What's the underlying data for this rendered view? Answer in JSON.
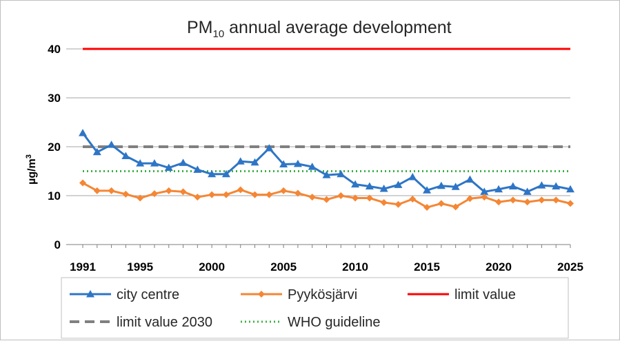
{
  "chart_data": {
    "type": "line",
    "title_main": "PM",
    "title_sub": "10",
    "title_rest": " annual average development",
    "ylabel_main": "µg/m",
    "ylabel_sup": "3",
    "xlabel": "",
    "ylim": [
      0,
      40
    ],
    "y_ticks": [
      0,
      10,
      20,
      30,
      40
    ],
    "xlim": [
      1991,
      2025
    ],
    "x_ticks": [
      1991,
      1995,
      2000,
      2005,
      2010,
      2015,
      2020,
      2025
    ],
    "grid": "horizontal",
    "legend_position": "bottom",
    "x": [
      1991,
      1992,
      1993,
      1994,
      1995,
      1996,
      1997,
      1998,
      1999,
      2000,
      2001,
      2002,
      2003,
      2004,
      2005,
      2006,
      2007,
      2008,
      2009,
      2010,
      2011,
      2012,
      2013,
      2014,
      2015,
      2016,
      2017,
      2018,
      2019,
      2020,
      2021,
      2022,
      2023,
      2024,
      2025
    ],
    "series": [
      {
        "name": "city centre",
        "color": "#2e75c6",
        "marker": "triangle",
        "values": [
          22.8,
          18.9,
          20.4,
          18.1,
          16.6,
          16.6,
          15.7,
          16.7,
          15.3,
          14.4,
          14.4,
          17.0,
          16.8,
          19.7,
          16.4,
          16.5,
          15.9,
          14.2,
          14.4,
          12.3,
          11.9,
          11.4,
          12.2,
          13.8,
          11.1,
          12.0,
          11.8,
          13.3,
          10.8,
          11.3,
          11.9,
          10.8,
          12.1,
          11.9,
          11.3
        ]
      },
      {
        "name": "Pyykösjärvi",
        "color": "#f58634",
        "marker": "diamond",
        "values": [
          12.6,
          11.0,
          11.0,
          10.3,
          9.5,
          10.4,
          11.0,
          10.8,
          9.7,
          10.2,
          10.2,
          11.2,
          10.2,
          10.2,
          11.0,
          10.5,
          9.7,
          9.2,
          10.0,
          9.5,
          9.5,
          8.6,
          8.2,
          9.3,
          7.6,
          8.4,
          7.7,
          9.4,
          9.7,
          8.7,
          9.1,
          8.7,
          9.1,
          9.1,
          8.4
        ]
      },
      {
        "name": "limit value",
        "color": "#ff0000",
        "style": "solid",
        "constant": 40
      },
      {
        "name": "limit value 2030",
        "color": "#808080",
        "style": "dashed",
        "constant": 20
      },
      {
        "name": "WHO guideline",
        "color": "#3cb043",
        "style": "dotted",
        "constant": 15
      }
    ]
  }
}
